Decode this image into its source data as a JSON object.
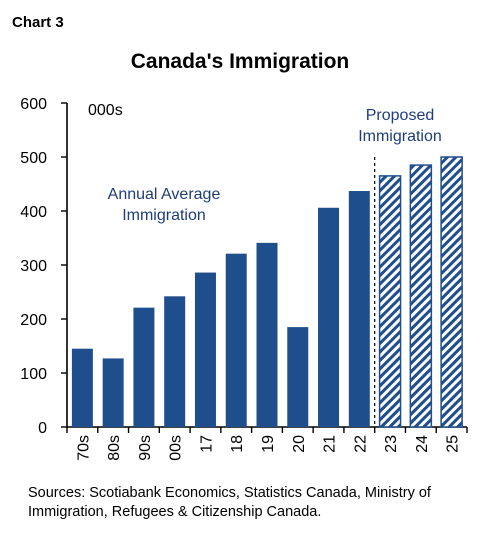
{
  "chart_label": "Chart 3",
  "chart_data": {
    "type": "bar",
    "title": "Canada's Immigration",
    "unit_label": "000s",
    "categories": [
      "70s",
      "80s",
      "90s",
      "00s",
      "17",
      "18",
      "19",
      "20",
      "21",
      "22",
      "23",
      "24",
      "25"
    ],
    "series": [
      {
        "values": [
          145,
          127,
          221,
          242,
          286,
          321,
          341,
          185,
          406,
          437,
          null,
          null,
          null
        ],
        "color": "#1f4e8c",
        "style": "solid"
      },
      {
        "values": [
          null,
          null,
          null,
          null,
          null,
          null,
          null,
          null,
          null,
          null,
          465,
          485,
          500
        ],
        "color": "#1f4e8c",
        "style": "hatched"
      }
    ],
    "annotations": [
      "Annual Average Immigration",
      "Proposed Immigration"
    ],
    "ylim": [
      0,
      600
    ],
    "yticks": [
      0,
      100,
      200,
      300,
      400,
      500,
      600
    ],
    "xlabel": "",
    "ylabel": "",
    "grid": false,
    "divider_after_category": "22"
  },
  "source_text": "Sources: Scotiabank Economics, Statistics Canada, Ministry of Immigration, Refugees & Citizenship Canada."
}
